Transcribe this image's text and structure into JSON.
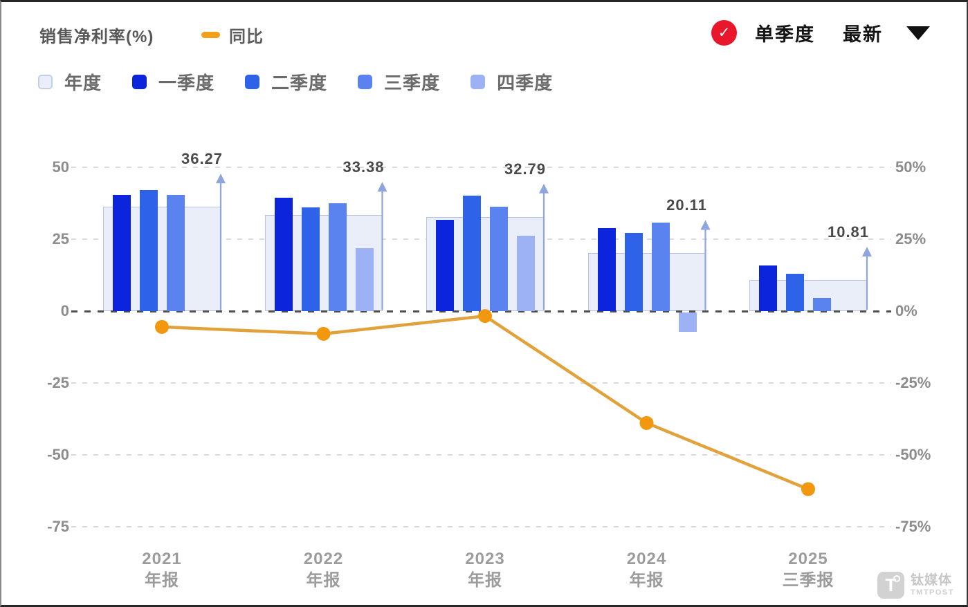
{
  "header": {
    "metric_label": "销售净利率(%)",
    "line_legend": "同比",
    "checkmark": "✓",
    "quarter_mode_label": "单季度",
    "latest_label": "最新"
  },
  "legend": {
    "items": [
      {
        "id": "annual",
        "label": "年度",
        "color": "#e9eef9",
        "border": "#c3cfe9"
      },
      {
        "id": "q1",
        "label": "一季度",
        "color": "#0b24dc",
        "border": ""
      },
      {
        "id": "q2",
        "label": "二季度",
        "color": "#2e63e9",
        "border": ""
      },
      {
        "id": "q3",
        "label": "三季度",
        "color": "#5b83ef",
        "border": ""
      },
      {
        "id": "q4",
        "label": "四季度",
        "color": "#9cb2f4",
        "border": ""
      }
    ]
  },
  "chart_data": {
    "type": "bar+line",
    "title": "销售净利率(%) 单季度",
    "categories": [
      {
        "year": "2021",
        "period": "年报"
      },
      {
        "year": "2022",
        "period": "年报"
      },
      {
        "year": "2023",
        "period": "年报"
      },
      {
        "year": "2024",
        "period": "年报"
      },
      {
        "year": "2025",
        "period": "三季报"
      }
    ],
    "annual_series": {
      "name": "年度",
      "values": [
        36.27,
        33.38,
        32.79,
        20.11,
        10.81
      ],
      "labels": [
        "36.27",
        "33.38",
        "32.79",
        "20.11",
        "10.81"
      ]
    },
    "quarter_series": [
      {
        "name": "一季度",
        "values": [
          40.3,
          39.4,
          31.7,
          28.8,
          15.8
        ]
      },
      {
        "name": "二季度",
        "values": [
          42.0,
          36.1,
          40.2,
          27.1,
          13.1
        ]
      },
      {
        "name": "三季度",
        "values": [
          40.4,
          37.5,
          36.2,
          30.7,
          4.5
        ]
      },
      {
        "name": "四季度",
        "values": [
          null,
          21.9,
          26.3,
          -6.8,
          null
        ]
      }
    ],
    "line_series": {
      "name": "同比",
      "unit": "%",
      "values": [
        -5.5,
        -7.9,
        -1.7,
        -38.9,
        -61.9
      ]
    },
    "left_axis_ticks": [
      50,
      25,
      0,
      -25,
      -50,
      -75
    ],
    "right_axis_ticks": [
      "50%",
      "25%",
      "0%",
      "-25%",
      "-50%",
      "-75%"
    ],
    "ylim": [
      -80,
      55
    ],
    "grid": "dashed-horizontal",
    "legend_position": "top-left"
  },
  "colors": {
    "annual_fill": "#e9eef9",
    "annual_border": "#b7c4e6",
    "quarters": [
      "#0b24dc",
      "#2e63e9",
      "#5b83ef",
      "#9cb2f4"
    ],
    "line": "#e2a23b",
    "dot": "#f2980e",
    "arrow": "#8fa5de",
    "badge_red": "#e8172c"
  },
  "watermark": {
    "logo": "T",
    "cn": "钛媒体",
    "en": "TMTPOST"
  }
}
